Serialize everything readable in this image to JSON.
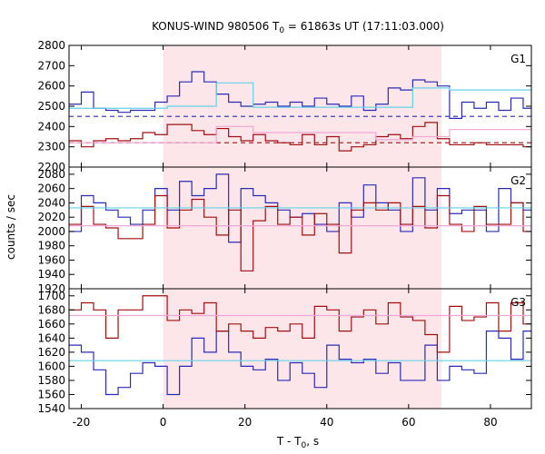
{
  "chart_data": {
    "type": "line",
    "title_main": "KONUS-WIND 980506 T",
    "title_sub": "0",
    "title_rest": " = 61863s UT (17:11:03.000)",
    "xlabel_main": "T - T",
    "xlabel_sub": "0",
    "xlabel_rest": ", s",
    "ylabel": "counts / sec",
    "xlim": [
      -23,
      90
    ],
    "x_ticks": [
      -20,
      0,
      20,
      40,
      60,
      80
    ],
    "x_tick_labels": [
      "-20",
      "0",
      "20",
      "40",
      "60",
      "80"
    ],
    "highlight_interval": [
      0,
      68
    ],
    "colors": {
      "blue": "#2b2bb5",
      "red": "#a01010",
      "cyan": "#66d2e8",
      "pink": "#f0a6d6",
      "shade": "#fde6ea"
    },
    "bin_edges": [
      -23,
      -20,
      -17,
      -14,
      -11,
      -8,
      -5,
      -2,
      1,
      4,
      7,
      10,
      13,
      16,
      19,
      22,
      25,
      28,
      31,
      34,
      37,
      40,
      43,
      46,
      49,
      52,
      55,
      58,
      61,
      64,
      67,
      70,
      73,
      76,
      79,
      82,
      85,
      88,
      90
    ],
    "panels": [
      {
        "label": "G1",
        "ylim": [
          2200,
          2800
        ],
        "y_ticks": [
          2200,
          2300,
          2400,
          2500,
          2600,
          2700,
          2800
        ],
        "y_tick_labels": [
          "2200",
          "2300",
          "2400",
          "2500",
          "2600",
          "2700",
          "2800"
        ],
        "series": [
          {
            "color_key": "blue",
            "values": [
              2510,
              2570,
              2490,
              2480,
              2470,
              2480,
              2480,
              2520,
              2550,
              2620,
              2670,
              2620,
              2560,
              2520,
              2500,
              2510,
              2520,
              2500,
              2520,
              2500,
              2540,
              2510,
              2500,
              2550,
              2480,
              2510,
              2590,
              2580,
              2630,
              2620,
              2600,
              2440,
              2520,
              2490,
              2520,
              2480,
              2540,
              2490
            ]
          },
          {
            "color_key": "red",
            "values": [
              2330,
              2300,
              2330,
              2340,
              2330,
              2340,
              2370,
              2360,
              2410,
              2410,
              2380,
              2360,
              2390,
              2350,
              2330,
              2360,
              2330,
              2320,
              2310,
              2360,
              2310,
              2350,
              2280,
              2300,
              2310,
              2350,
              2360,
              2340,
              2400,
              2420,
              2340,
              2310,
              2310,
              2320,
              2310,
              2310,
              2310,
              2300
            ]
          }
        ],
        "bg_lines": [
          {
            "color_key": "blue",
            "y": 2450,
            "dashed": true,
            "x": [
              -23,
              90
            ]
          },
          {
            "color_key": "red",
            "y": 2320,
            "dashed": true,
            "x": [
              -23,
              90
            ]
          }
        ],
        "fit_steps": [
          {
            "color_key": "cyan",
            "x": [
              -23,
              -5,
              1,
              13,
              22,
              34,
              43,
              52,
              61,
              70,
              90
            ],
            "y": [
              2490,
              2490,
              2500,
              2615,
              2495,
              2495,
              2495,
              2495,
              2590,
              2580,
              2460
            ]
          },
          {
            "color_key": "pink",
            "x": [
              -23,
              -5,
              1,
              13,
              22,
              34,
              43,
              52,
              61,
              70,
              90
            ],
            "y": [
              2320,
              2320,
              2320,
              2400,
              2370,
              2370,
              2370,
              2335,
              2350,
              2385,
              2320
            ]
          }
        ]
      },
      {
        "label": "G2",
        "ylim": [
          1920,
          2090
        ],
        "y_ticks": [
          1920,
          1940,
          1960,
          1980,
          2000,
          2020,
          2040,
          2060,
          2080
        ],
        "y_tick_labels": [
          "1920",
          "1940",
          "1960",
          "1980",
          "2000",
          "2020",
          "2040",
          "2060",
          "2080"
        ],
        "series": [
          {
            "color_key": "blue",
            "values": [
              2000,
              2050,
              2040,
              2030,
              2020,
              2010,
              2030,
              2060,
              2030,
              2070,
              2050,
              2060,
              2080,
              1985,
              2060,
              2050,
              2040,
              2030,
              2020,
              2025,
              2010,
              2000,
              2040,
              2020,
              2065,
              2040,
              2030,
              2000,
              2075,
              2030,
              2060,
              2025,
              2030,
              2030,
              2000,
              2060,
              2040,
              2030
            ]
          },
          {
            "color_key": "red",
            "values": [
              2010,
              2035,
              2010,
              2005,
              1990,
              1990,
              2010,
              2050,
              2005,
              2030,
              2045,
              2020,
              1995,
              2030,
              1945,
              2015,
              2035,
              2010,
              2020,
              1995,
              2025,
              2010,
              1970,
              2030,
              2040,
              2030,
              2040,
              2010,
              2035,
              2005,
              2050,
              2010,
              2000,
              2035,
              2010,
              2010,
              2040,
              2000
            ]
          }
        ],
        "fit_steps": [
          {
            "color_key": "cyan",
            "x": [
              -23,
              90
            ],
            "y": [
              2033,
              2033
            ]
          },
          {
            "color_key": "pink",
            "x": [
              -23,
              90
            ],
            "y": [
              2008,
              2008
            ]
          }
        ]
      },
      {
        "label": "G3",
        "ylim": [
          1540,
          1710
        ],
        "y_ticks": [
          1540,
          1560,
          1580,
          1600,
          1620,
          1640,
          1660,
          1680,
          1700
        ],
        "y_tick_labels": [
          "1540",
          "1560",
          "1580",
          "1600",
          "1620",
          "1640",
          "1660",
          "1680",
          "1700"
        ],
        "series": [
          {
            "color_key": "blue",
            "values": [
              1630,
              1620,
              1595,
              1560,
              1570,
              1590,
              1605,
              1600,
              1560,
              1600,
              1640,
              1620,
              1650,
              1620,
              1600,
              1595,
              1610,
              1580,
              1605,
              1590,
              1570,
              1630,
              1610,
              1605,
              1610,
              1590,
              1605,
              1580,
              1580,
              1630,
              1580,
              1600,
              1595,
              1590,
              1650,
              1640,
              1610,
              1650
            ]
          },
          {
            "color_key": "red",
            "values": [
              1680,
              1690,
              1680,
              1640,
              1680,
              1680,
              1700,
              1700,
              1665,
              1680,
              1675,
              1690,
              1650,
              1660,
              1650,
              1640,
              1655,
              1650,
              1660,
              1640,
              1685,
              1680,
              1650,
              1670,
              1680,
              1660,
              1690,
              1670,
              1665,
              1645,
              1620,
              1685,
              1665,
              1670,
              1690,
              1650,
              1690,
              1660
            ]
          }
        ],
        "fit_steps": [
          {
            "color_key": "cyan",
            "x": [
              -23,
              90
            ],
            "y": [
              1608,
              1608
            ]
          },
          {
            "color_key": "pink",
            "x": [
              -23,
              90
            ],
            "y": [
              1672,
              1672
            ]
          }
        ]
      }
    ]
  }
}
